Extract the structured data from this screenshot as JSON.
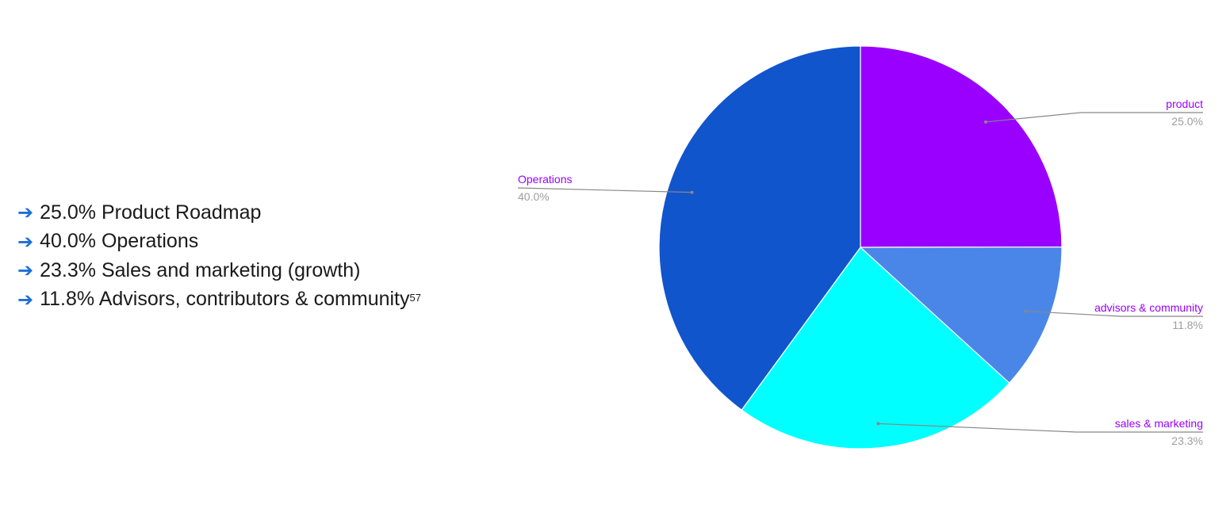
{
  "bullets": {
    "arrow_icon": "right-arrow-icon",
    "items": [
      {
        "text": "25.0% Product Roadmap",
        "sup": ""
      },
      {
        "text": "40.0% Operations",
        "sup": ""
      },
      {
        "text": "23.3% Sales and marketing (growth)",
        "sup": ""
      },
      {
        "text": "11.8% Advisors, contributors & community",
        "sup": "57"
      }
    ]
  },
  "chart_data": {
    "type": "pie",
    "start_angle_deg": 0,
    "direction": "clockwise",
    "label_color": "#9900ff",
    "percent_color": "#9e9e9e",
    "leader_color": "#888888",
    "slices": [
      {
        "label": "product",
        "value": 25.0,
        "percent_text": "25.0%",
        "color": "#9900ff"
      },
      {
        "label": "advisors & community",
        "value": 11.8,
        "percent_text": "11.8%",
        "color": "#4a86e8"
      },
      {
        "label": "sales & marketing",
        "value": 23.3,
        "percent_text": "23.3%",
        "color": "#00ffff"
      },
      {
        "label": "Operations",
        "value": 40.0,
        "percent_text": "40.0%",
        "color": "#1155cc"
      }
    ]
  }
}
